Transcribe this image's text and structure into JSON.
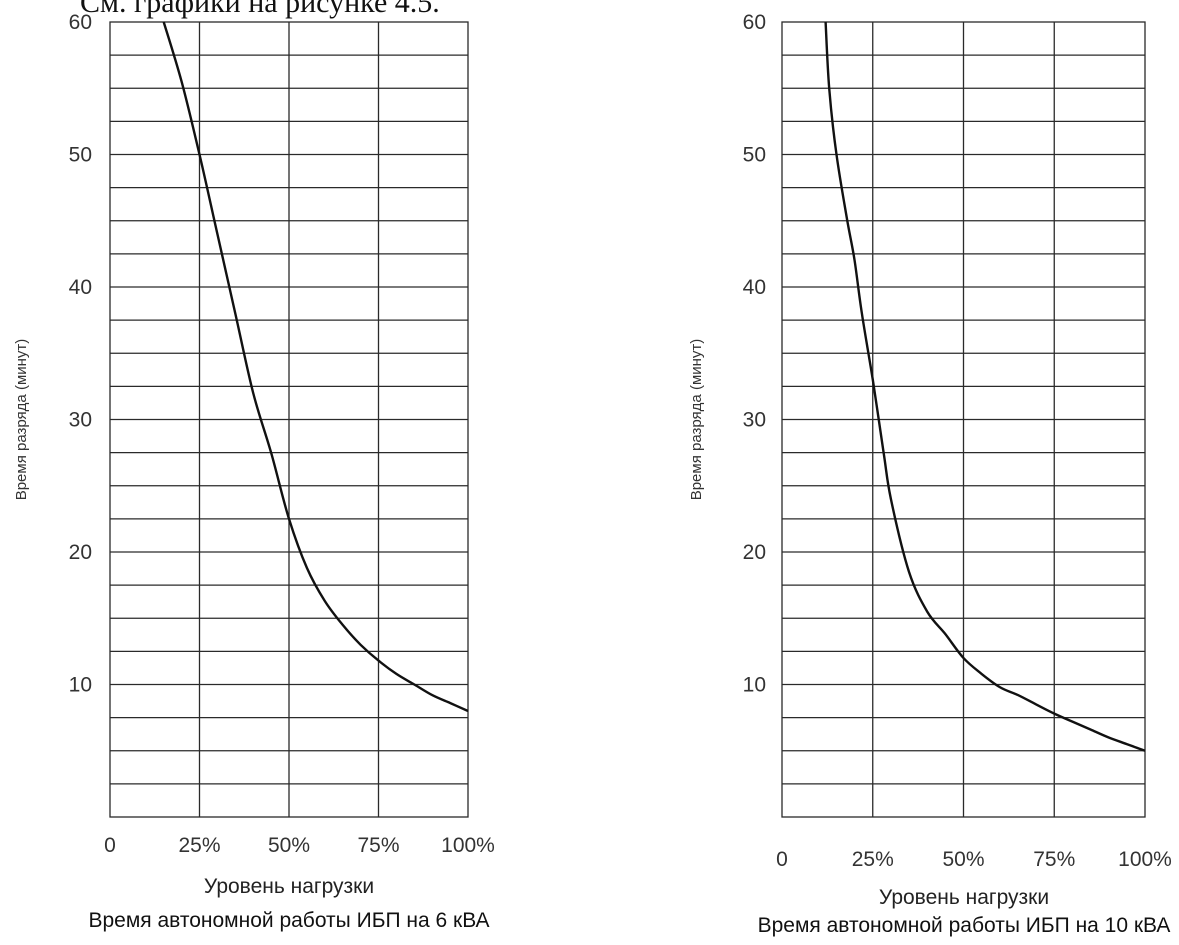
{
  "page": {
    "heading": "См. графики на рисунке 4.5."
  },
  "chart_data": [
    {
      "type": "line",
      "caption": "Время автономной работы ИБП на 6 кВА",
      "xlabel": "Уровень нагрузки",
      "ylabel": "Время разряда (минут)",
      "x_ticks": [
        "0",
        "25%",
        "50%",
        "75%",
        "100%"
      ],
      "y_ticks": [
        "10",
        "20",
        "30",
        "40",
        "50",
        "60"
      ],
      "xlim": [
        0,
        100
      ],
      "ylim": [
        0,
        60
      ],
      "grid": true,
      "series": [
        {
          "x": [
            15,
            20,
            25,
            30,
            35,
            40,
            45,
            50,
            55,
            60,
            65,
            70,
            75,
            80,
            85,
            90,
            95,
            100
          ],
          "y": [
            60,
            55.5,
            50,
            44,
            38,
            32,
            27.5,
            22.5,
            18.8,
            16.3,
            14.5,
            13,
            11.8,
            10.8,
            10,
            9.2,
            8.6,
            8
          ]
        }
      ]
    },
    {
      "type": "line",
      "caption": "Время автономной работы ИБП на 10 кВА",
      "xlabel": "Уровень нагрузки",
      "ylabel": "Время разряда (минут)",
      "x_ticks": [
        "0",
        "25%",
        "50%",
        "75%",
        "100%"
      ],
      "y_ticks": [
        "10",
        "20",
        "30",
        "40",
        "50",
        "60"
      ],
      "xlim": [
        0,
        100
      ],
      "ylim": [
        0,
        60
      ],
      "grid": true,
      "series": [
        {
          "x": [
            12,
            13,
            15,
            18,
            20,
            22,
            25,
            28,
            30,
            35,
            40,
            45,
            50,
            55,
            60,
            65,
            70,
            75,
            80,
            85,
            90,
            95,
            100
          ],
          "y": [
            60,
            55,
            50,
            45,
            42,
            38,
            33,
            27.5,
            24,
            18.5,
            15.5,
            13.8,
            12,
            10.8,
            9.8,
            9.2,
            8.5,
            7.8,
            7.2,
            6.6,
            6,
            5.5,
            5
          ]
        }
      ]
    }
  ]
}
